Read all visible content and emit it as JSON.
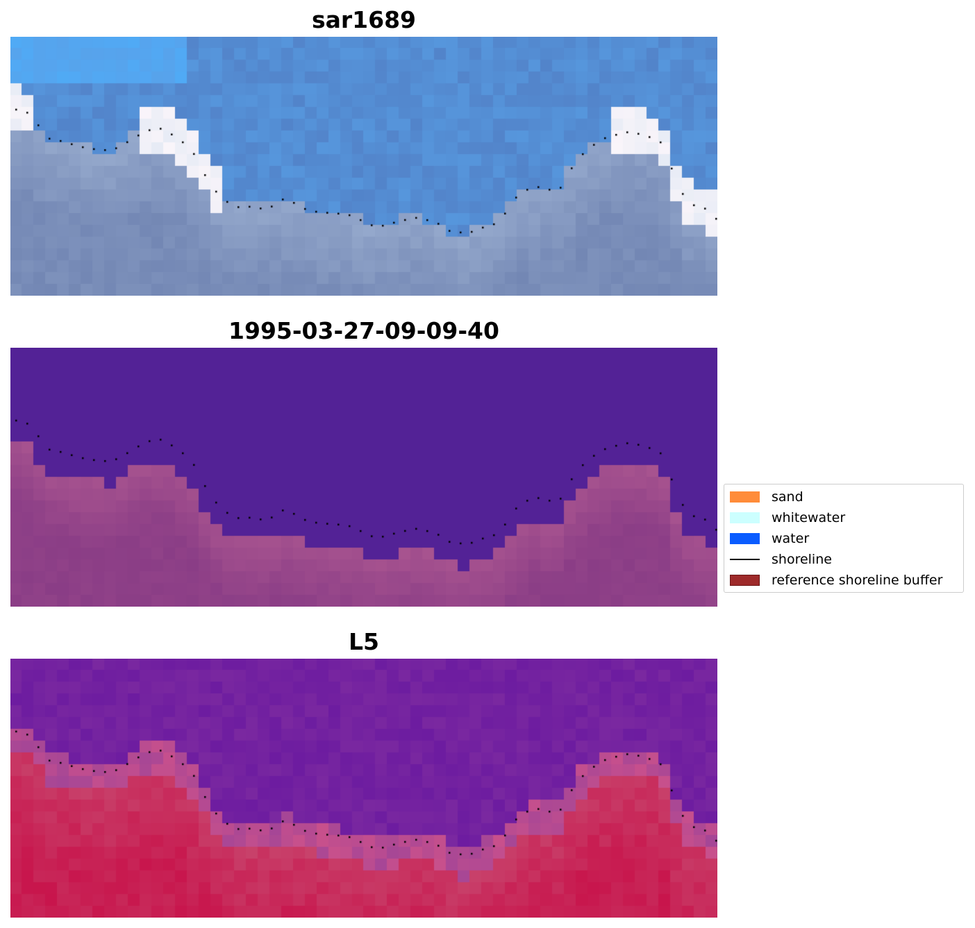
{
  "panels": [
    {
      "title": "sar1689",
      "style": "rgb"
    },
    {
      "title": "1995-03-27-09-09-40",
      "style": "classified"
    },
    {
      "title": "L5",
      "style": "index"
    }
  ],
  "legend": {
    "items": [
      {
        "label": "sand",
        "color": "#ff8c3a",
        "kind": "patch"
      },
      {
        "label": "whitewater",
        "color": "#ccffff",
        "kind": "patch"
      },
      {
        "label": "water",
        "color": "#0a5cff",
        "kind": "patch"
      },
      {
        "label": "shoreline",
        "color": "#000000",
        "kind": "line"
      },
      {
        "label": "reference shoreline buffer",
        "color": "#9e2a2a",
        "kind": "patch"
      }
    ]
  },
  "colors": {
    "classified_water": "#532296",
    "classified_land": "#8a3d86",
    "index_water": "#7a28a0",
    "index_land": "#c8154c",
    "shoreline": "#000000"
  }
}
